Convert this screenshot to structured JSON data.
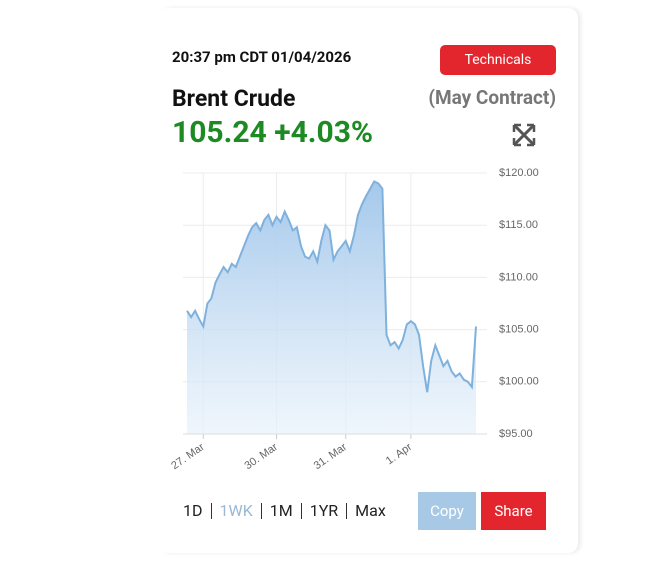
{
  "header": {
    "timestamp": "20:37 pm CDT 01/04/2026",
    "button": "Technicals",
    "name": "Brent Crude",
    "contract": "(May Contract)",
    "price": "105.24",
    "change": "+4.03%"
  },
  "chart_data": {
    "type": "area",
    "color": "#7fb1dd",
    "categories": [
      null,
      null,
      null,
      null,
      "27. Mar",
      null,
      null,
      null,
      null,
      null,
      null,
      null,
      null,
      null,
      null,
      null,
      null,
      null,
      null,
      null,
      null,
      null,
      "30. Mar",
      null,
      null,
      null,
      null,
      null,
      null,
      null,
      null,
      null,
      null,
      null,
      null,
      null,
      null,
      null,
      null,
      "31. Mar",
      null,
      null,
      null,
      null,
      null,
      null,
      null,
      null,
      null,
      null,
      null,
      null,
      null,
      null,
      null,
      "1. Apr",
      null,
      null,
      null,
      null,
      null,
      null,
      null,
      null,
      null,
      null,
      null,
      null,
      null,
      null,
      null,
      null
    ],
    "values": [
      106.8,
      106.2,
      106.8,
      106.0,
      105.3,
      107.5,
      108.0,
      109.5,
      110.3,
      111.0,
      110.5,
      111.3,
      111.0,
      112.0,
      113.0,
      114.0,
      114.8,
      115.2,
      114.5,
      115.5,
      116.0,
      115.0,
      115.8,
      115.3,
      116.3,
      115.5,
      114.5,
      114.8,
      113.0,
      112.0,
      111.8,
      112.5,
      111.5,
      113.5,
      115.0,
      114.5,
      111.7,
      112.5,
      113.0,
      113.5,
      112.5,
      114.0,
      116.0,
      117.0,
      117.8,
      118.5,
      119.2,
      119.0,
      118.5,
      104.5,
      103.5,
      103.8,
      103.2,
      104.0,
      105.5,
      105.8,
      105.5,
      104.5,
      101.5,
      99.0,
      102.0,
      103.5,
      102.5,
      101.5,
      102.0,
      101.0,
      100.5,
      100.8,
      100.2,
      100.0,
      99.5,
      105.3
    ],
    "ylim": [
      95,
      120
    ],
    "yticks": [
      {
        "value": 95,
        "label": "$95.00"
      },
      {
        "value": 100,
        "label": "$100.00"
      },
      {
        "value": 105,
        "label": "$105.00"
      },
      {
        "value": 110,
        "label": "$110.00"
      },
      {
        "value": 115,
        "label": "$115.00"
      },
      {
        "value": 120,
        "label": "$120.00"
      }
    ],
    "grid": true
  },
  "range_buttons": [
    "1D",
    "1WK",
    "1M",
    "1YR",
    "Max"
  ],
  "actions": [
    "Copy",
    "Share"
  ]
}
